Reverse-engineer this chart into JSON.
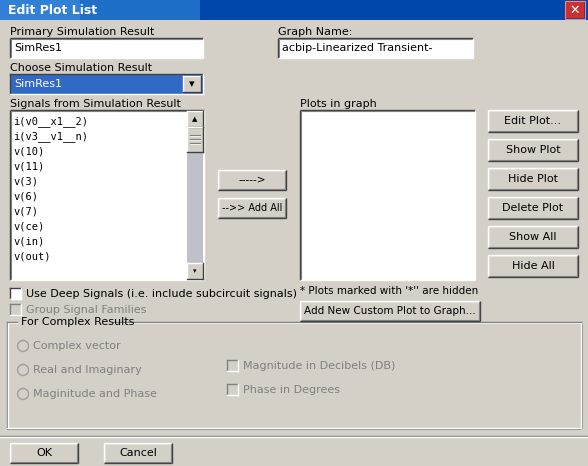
{
  "title": "Edit Plot List",
  "bg_color": "#d4d0c8",
  "title_bar_color": "#0055cc",
  "title_bar_text_color": "#ffffff",
  "labels": {
    "primary_sim": "Primary Simulation Result",
    "graph_name": "Graph Name:",
    "choose_sim": "Choose Simulation Result",
    "signals": "Signals from Simulation Result",
    "plots_in_graph": "Plots in graph",
    "use_deep": "Use Deep Signals (i.e. include subcircuit signals)",
    "group_signal": "Group Signal Families",
    "for_complex": "For Complex Results",
    "complex_vector": "Complex vector",
    "real_imaginary": "Real and Imaginary",
    "magnitude_phase": "Maginitude and Phase",
    "magnitude_db": "Magnitude in Decibels (DB)",
    "phase_degrees": "Phase in Degrees",
    "plots_note": "* Plots marked with '*'' are hidden",
    "add_custom": "Add New Custom Plot to Graph..."
  },
  "field_values": {
    "sim_res": "SimRes1",
    "graph_name": "acbip-Linearized Transient-",
    "dropdown_val": "SimRes1"
  },
  "signals_list": [
    "i(v0__x1__2)",
    "i(v3__v1__n)",
    "v(10)",
    "v(11)",
    "v(3)",
    "v(6)",
    "v(7)",
    "v(ce)",
    "v(in)",
    "v(out)"
  ],
  "buttons": [
    "Edit Plot...",
    "Show Plot",
    "Hide Plot",
    "Delete Plot",
    "Show All",
    "Hide All"
  ],
  "bottom_buttons": [
    "OK",
    "Cancel"
  ],
  "arrow_buttons": [
    "----->",
    "-->> Add All"
  ],
  "field_bg": "#ffffff",
  "dropdown_bg": "#316ac5",
  "dropdown_text": "#ffffff",
  "border_light": "#ffffff",
  "border_dark": "#808080",
  "border_darker": "#404040",
  "scrollbar_bg": "#b8c4d8",
  "scroll_track": "#c8c8c8",
  "disabled_text": "#808080"
}
